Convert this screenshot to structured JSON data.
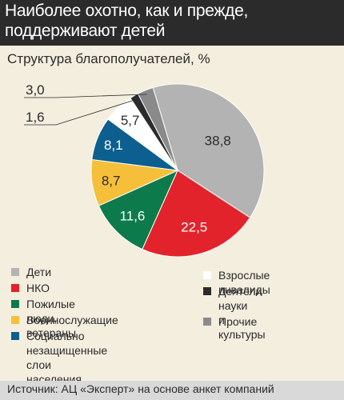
{
  "header": {
    "title": "Наиболее охотно, как и прежде, поддерживают детей"
  },
  "chart_data": {
    "type": "pie",
    "title": "Структура благополучателей, %",
    "categories": [
      "Дети",
      "НКО",
      "Пожилые люди, ветераны",
      "Военнослужащие",
      "Социально незащищенные слои населения",
      "Взрослые инвалиды",
      "Деятели науки и культуры",
      "Прочие"
    ],
    "values": [
      38.8,
      22.5,
      11.6,
      8.7,
      8.1,
      5.7,
      1.6,
      3.0
    ],
    "value_labels": [
      "38,8",
      "22,5",
      "11,6",
      "8,7",
      "8,1",
      "5,7",
      "1,6",
      "3,0"
    ],
    "colors": [
      "#b3b3b3",
      "#e3232b",
      "#0d7a4c",
      "#f6bf3a",
      "#0d5f8f",
      "#ffffff",
      "#2b2b2b",
      "#8a8a8a"
    ],
    "label_colors": [
      "#2b2b2b",
      "#ffffff",
      "#ffffff",
      "#2b2b2b",
      "#ffffff",
      "#2b2b2b",
      "#2b2b2b",
      "#2b2b2b"
    ]
  },
  "legend": {
    "left": [
      {
        "label": "Дети",
        "color": "#b3b3b3"
      },
      {
        "label": "НКО",
        "color": "#e3232b"
      },
      {
        "label": "Пожилые люди, ветераны",
        "color": "#0d7a4c"
      },
      {
        "label": "Военнослужащие",
        "color": "#f6bf3a"
      },
      {
        "label": "Социально незащищенные\nслои населения",
        "color": "#0d5f8f"
      }
    ],
    "right": [
      {
        "label": "Взрослые инвалиды",
        "color": "#ffffff"
      },
      {
        "label": "Деятели науки\nи культуры",
        "color": "#2b2b2b"
      },
      {
        "label": "Прочие",
        "color": "#8a8a8a"
      }
    ]
  },
  "footer": {
    "source": "Источник: АЦ «Эксперт» на основе анкет компаний"
  }
}
